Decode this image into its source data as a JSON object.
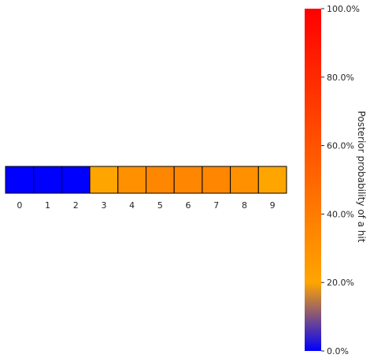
{
  "chart_data": {
    "type": "heatmap",
    "categories": [
      "0",
      "1",
      "2",
      "3",
      "4",
      "5",
      "6",
      "7",
      "8",
      "9"
    ],
    "values": [
      0.0,
      0.0,
      0.0,
      0.2,
      0.3,
      0.35,
      0.35,
      0.35,
      0.3,
      0.2
    ],
    "colorbar": {
      "label": "Posterior probability of a hit",
      "range": [
        0,
        1
      ],
      "ticks": [
        {
          "value": 0.0,
          "label": "0.0%"
        },
        {
          "value": 0.2,
          "label": "20.0%"
        },
        {
          "value": 0.4,
          "label": "40.0%"
        },
        {
          "value": 0.6,
          "label": "60.0%"
        },
        {
          "value": 0.8,
          "label": "80.0%"
        },
        {
          "value": 1.0,
          "label": "100.0%"
        }
      ],
      "colors": {
        "low": "#0000ff",
        "mid": "#ffa500",
        "high": "#ff0000"
      }
    },
    "cell_border_color": "#000000",
    "grid": false
  }
}
